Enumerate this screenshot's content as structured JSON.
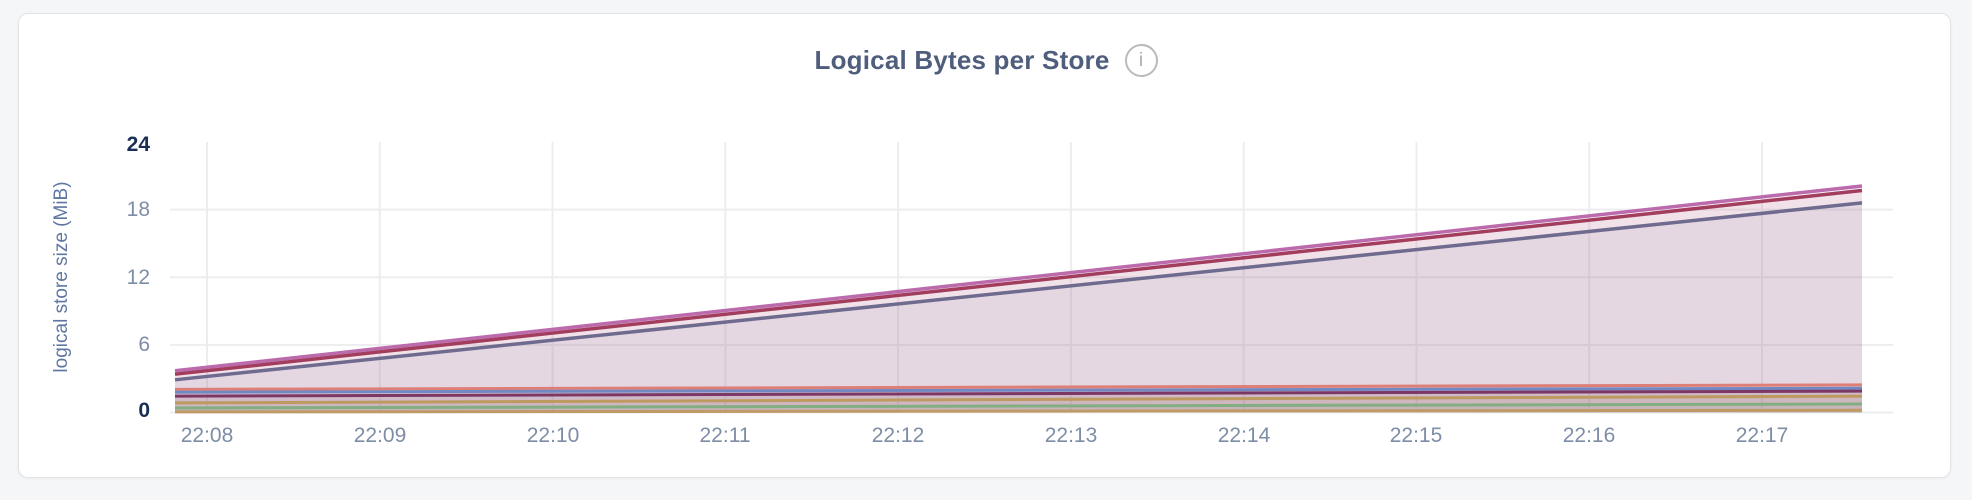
{
  "header": {
    "title": "Logical Bytes per Store",
    "info_glyph": "i"
  },
  "colors": {
    "page_background": "#f5f6f8",
    "card_background": "#ffffff",
    "card_border": "#e2e3e7",
    "title_text": "#505e7d",
    "axis_title_text": "#5f77a2",
    "tick_text": "#7e8da6",
    "tick_text_strong": "#1a2f55",
    "gridline": "#ededf0",
    "info_icon": "#b9babd"
  },
  "chart_data": {
    "type": "area",
    "title": "Logical Bytes per Store",
    "ylabel": "logical store size (MiB)",
    "unit": "MiB",
    "ylim": [
      0,
      24
    ],
    "y_tick_labels": [
      "24",
      "18",
      "12",
      "6",
      "0"
    ],
    "x_ticks": [
      "22:08",
      "22:09",
      "22:10",
      "22:11",
      "22:12",
      "22:13",
      "22:14",
      "22:15",
      "22:16",
      "22:17"
    ],
    "x_window": [
      "22:07:50",
      "22:17:35"
    ],
    "grid": true,
    "legend_position": "none",
    "fill_opacity": 0.09,
    "series": [
      {
        "id": "series-1",
        "color": "#bb6bac",
        "values": [
          3.7,
          20.1
        ]
      },
      {
        "id": "series-2",
        "color": "#a23d5e",
        "values": [
          3.4,
          19.7
        ]
      },
      {
        "id": "series-3",
        "color": "#6f6b8f",
        "values": [
          2.9,
          18.6
        ]
      },
      {
        "id": "series-4",
        "color": "#dd7f77",
        "values": [
          2.05,
          2.45
        ]
      },
      {
        "id": "series-5",
        "color": "#7288c2",
        "values": [
          1.8,
          2.15
        ]
      },
      {
        "id": "series-6",
        "color": "#7c3765",
        "values": [
          1.45,
          1.9
        ]
      },
      {
        "id": "series-7",
        "color": "#bd9a5f",
        "values": [
          0.85,
          1.45
        ]
      },
      {
        "id": "series-8",
        "color": "#83ad83",
        "values": [
          0.4,
          0.75
        ]
      },
      {
        "id": "series-9",
        "color": "#bf9a66",
        "values": [
          0.05,
          0.2
        ]
      }
    ]
  }
}
